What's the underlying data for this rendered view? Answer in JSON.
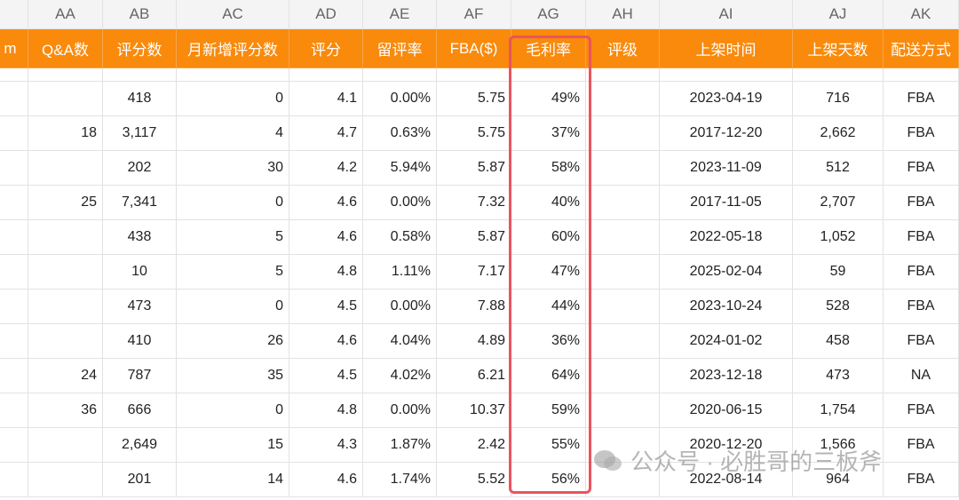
{
  "sheet": {
    "column_letters": [
      null,
      "AA",
      "AB",
      "AC",
      "AD",
      "AE",
      "AF",
      "AG",
      "AH",
      "AI",
      "AJ",
      "AK"
    ],
    "header": [
      "m",
      "Q&A数",
      "评分数",
      "月新增评分数",
      "评分",
      "留评率",
      "FBA($)",
      "毛利率",
      "评级",
      "上架时间",
      "上架天数",
      "配送方式"
    ],
    "rows": [
      [
        null,
        null,
        "418",
        "0",
        "4.1",
        "0.00%",
        "5.75",
        "49%",
        null,
        "2023-04-19",
        "716",
        "FBA"
      ],
      [
        null,
        "18",
        "3,117",
        "4",
        "4.7",
        "0.63%",
        "5.75",
        "37%",
        null,
        "2017-12-20",
        "2,662",
        "FBA"
      ],
      [
        null,
        null,
        "202",
        "30",
        "4.2",
        "5.94%",
        "5.87",
        "58%",
        null,
        "2023-11-09",
        "512",
        "FBA"
      ],
      [
        null,
        "25",
        "7,341",
        "0",
        "4.6",
        "0.00%",
        "7.32",
        "40%",
        null,
        "2017-11-05",
        "2,707",
        "FBA"
      ],
      [
        null,
        null,
        "438",
        "5",
        "4.6",
        "0.58%",
        "5.87",
        "60%",
        null,
        "2022-05-18",
        "1,052",
        "FBA"
      ],
      [
        null,
        null,
        "10",
        "5",
        "4.8",
        "1.11%",
        "7.17",
        "47%",
        null,
        "2025-02-04",
        "59",
        "FBA"
      ],
      [
        null,
        null,
        "473",
        "0",
        "4.5",
        "0.00%",
        "7.88",
        "44%",
        null,
        "2023-10-24",
        "528",
        "FBA"
      ],
      [
        null,
        null,
        "410",
        "26",
        "4.6",
        "4.04%",
        "4.89",
        "36%",
        null,
        "2024-01-02",
        "458",
        "FBA"
      ],
      [
        null,
        "24",
        "787",
        "35",
        "4.5",
        "4.02%",
        "6.21",
        "64%",
        null,
        "2023-12-18",
        "473",
        "NA"
      ],
      [
        null,
        "36",
        "666",
        "0",
        "4.8",
        "0.00%",
        "10.37",
        "59%",
        null,
        "2020-06-15",
        "1,754",
        "FBA"
      ],
      [
        null,
        null,
        "2,649",
        "15",
        "4.3",
        "1.87%",
        "2.42",
        "55%",
        null,
        "2020-12-20",
        "1,566",
        "FBA"
      ],
      [
        null,
        null,
        "201",
        "14",
        "4.6",
        "1.74%",
        "5.52",
        "56%",
        null,
        "2022-08-14",
        "964",
        "FBA"
      ]
    ]
  },
  "watermark": "公众号 · 必胜哥的三板斧"
}
